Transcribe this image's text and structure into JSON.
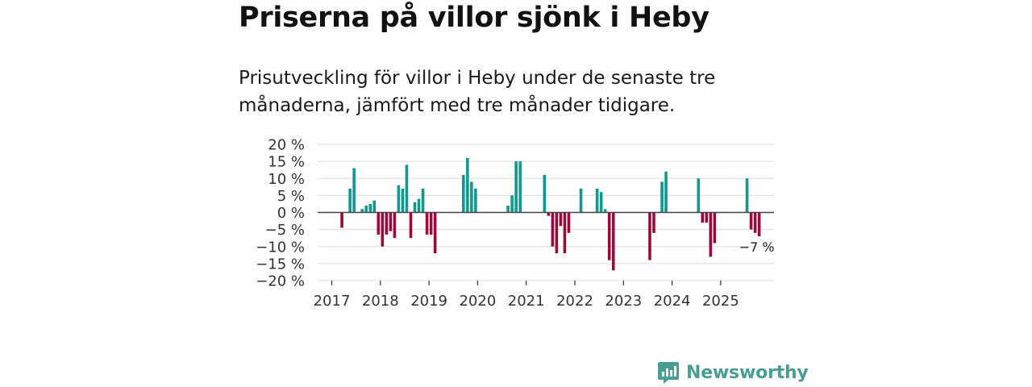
{
  "header": {
    "title": "Priserna på villor sjönk i Heby",
    "subtitle": "Prisutveckling för villor i Heby under de senaste tre månaderna, jämfört med tre månader tidigare."
  },
  "colors": {
    "positive": "#0e9a8f",
    "negative": "#9a0a3c",
    "grid": "#dcdcdc",
    "zero_line": "#444444",
    "axis_text": "#333333",
    "brand": "#4a9d93"
  },
  "brand": {
    "name": "Newsworthy",
    "icon": "newsworthy-logo-icon"
  },
  "chart_data": {
    "type": "bar",
    "title": "Priserna på villor sjönk i Heby",
    "xlabel": "",
    "ylabel": "",
    "y_unit": "%",
    "ylim": [
      -20,
      20
    ],
    "y_ticks": [
      20,
      15,
      10,
      5,
      0,
      -5,
      -10,
      -15,
      -20
    ],
    "y_tick_labels": [
      "20 %",
      "15 %",
      "10 %",
      "5 %",
      "0 %",
      "−5 %",
      "−10 %",
      "−15 %",
      "−20 %"
    ],
    "x_tick_labels": [
      "2017",
      "2018",
      "2019",
      "2020",
      "2021",
      "2022",
      "2023",
      "2024",
      "2025"
    ],
    "x_start": "2017-01",
    "end_label": "−7 %",
    "series": [
      {
        "name": "Prisutveckling",
        "frequency": "monthly",
        "values": [
          null,
          null,
          -4.5,
          null,
          7,
          13,
          null,
          1,
          2,
          2.5,
          3.5,
          -6.5,
          -10,
          -6.5,
          -5.5,
          -7.5,
          8,
          7,
          14,
          -7.5,
          3,
          4,
          7,
          -6.5,
          -6.5,
          -12,
          null,
          null,
          null,
          null,
          null,
          null,
          11,
          16,
          9,
          7,
          null,
          null,
          null,
          null,
          null,
          null,
          null,
          2,
          5,
          15,
          15,
          null,
          null,
          null,
          null,
          null,
          11,
          -1,
          -10,
          -12,
          -4,
          -12,
          -6,
          null,
          null,
          7,
          null,
          null,
          null,
          7,
          6,
          1,
          -14,
          -17,
          null,
          null,
          null,
          null,
          null,
          null,
          null,
          null,
          -14,
          -6,
          null,
          9,
          12,
          null,
          null,
          null,
          null,
          null,
          null,
          null,
          10,
          -3,
          -3,
          -13,
          -9,
          null,
          null,
          null,
          null,
          null,
          null,
          null,
          10,
          -5,
          -6,
          -7
        ]
      }
    ]
  }
}
